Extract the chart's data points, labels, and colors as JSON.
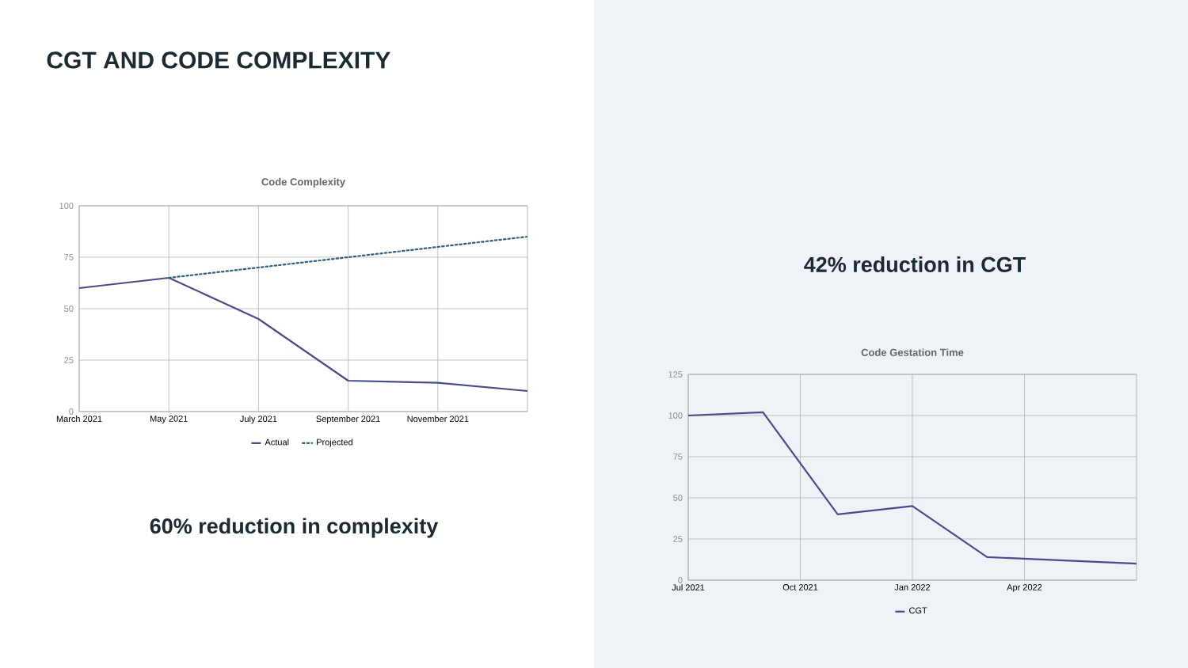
{
  "chart_data": [
    {
      "type": "line",
      "title": "Code Complexity",
      "annotations": [
        "CGT AND CODE COMPLEXITY",
        "60% reduction in complexity"
      ],
      "xlim": [
        "2021-03",
        "2022-01"
      ],
      "xticks": [
        {
          "value": "2021-03",
          "label": "March 2021"
        },
        {
          "value": "2021-05",
          "label": "May 2021"
        },
        {
          "value": "2021-07",
          "label": "July 2021"
        },
        {
          "value": "2021-09",
          "label": "September 2021"
        },
        {
          "value": "2021-11",
          "label": "November 2021"
        }
      ],
      "ylim": [
        0,
        100
      ],
      "yticks": [
        0,
        25,
        50,
        75,
        100
      ],
      "grid": true,
      "legend": "bottom",
      "marker": "none",
      "series": [
        {
          "name": "Actual",
          "color": "#4b4b87",
          "line_style": "solid",
          "x": [
            "2021-03",
            "2021-05",
            "2021-07",
            "2021-09",
            "2021-11",
            "2022-01"
          ],
          "values": [
            60,
            65,
            45,
            15,
            14,
            10
          ]
        },
        {
          "name": "Projected",
          "color": "#2f5f7a",
          "line_style": "dotted",
          "x": [
            "2021-05",
            "2021-07",
            "2021-09",
            "2021-11",
            "2022-01"
          ],
          "values": [
            65,
            70,
            75,
            80,
            85
          ]
        }
      ]
    },
    {
      "type": "line",
      "title": "Code Gestation Time",
      "annotations": [
        "42% reduction in CGT"
      ],
      "xlim": [
        "2021-07",
        "2022-07"
      ],
      "xticks": [
        {
          "value": "2021-07",
          "label": "Jul 2021"
        },
        {
          "value": "2021-10",
          "label": "Oct 2021"
        },
        {
          "value": "2022-01",
          "label": "Jan 2022"
        },
        {
          "value": "2022-04",
          "label": "Apr 2022"
        }
      ],
      "ylim": [
        0,
        125
      ],
      "yticks": [
        0,
        25,
        50,
        75,
        100,
        125
      ],
      "grid": true,
      "legend": "bottom",
      "marker": "none",
      "series": [
        {
          "name": "CGT",
          "color": "#4b4b87",
          "line_style": "solid",
          "x": [
            "2021-07",
            "2021-09",
            "2021-11",
            "2022-01",
            "2022-03",
            "2022-07"
          ],
          "values": [
            100,
            102,
            40,
            45,
            14,
            10
          ]
        }
      ]
    }
  ]
}
